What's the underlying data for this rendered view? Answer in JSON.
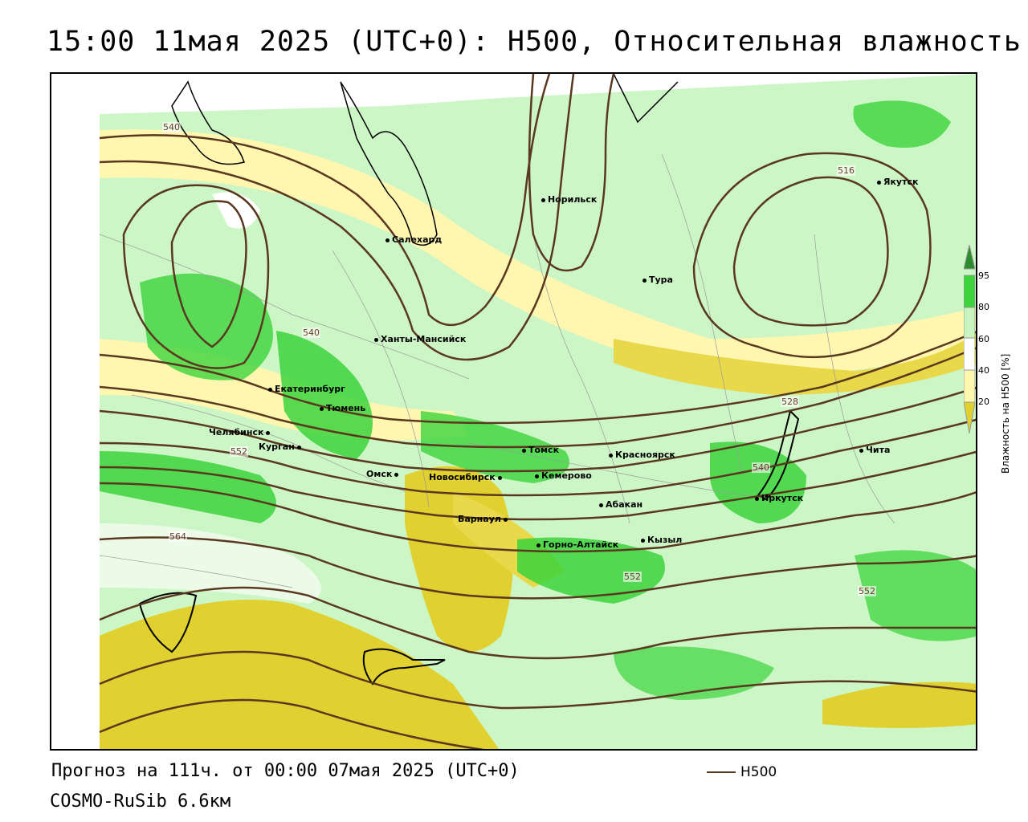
{
  "title": "15:00 11мая 2025 (UTC+0): H500, Относительная влажность",
  "footer": {
    "forecast": "Прогноз на 111ч. от 00:00 07мая 2025 (UTC+0)",
    "model": "COSMO-RuSib 6.6км",
    "line_legend": "H500"
  },
  "legend": {
    "title": "Влажность на H500 [%]",
    "ticks": [
      "95",
      "80",
      "60",
      "40",
      "20"
    ],
    "colors": {
      "95": "#2e8b2e",
      "80": "#3cd43c",
      "60": "#c8f5c0",
      "mid": "#ffffff",
      "40": "#fff6b0",
      "20": "#e0d030"
    }
  },
  "isolines": {
    "color": "#5a3820",
    "labels": [
      "540",
      "516",
      "540",
      "528",
      "540",
      "552",
      "564",
      "552",
      "552"
    ]
  },
  "cities": [
    {
      "name": "Норильск"
    },
    {
      "name": "Якутск"
    },
    {
      "name": "Салехард"
    },
    {
      "name": "Тура"
    },
    {
      "name": "Ханты-Мансийск"
    },
    {
      "name": "Екатеринбург"
    },
    {
      "name": "Тюмень"
    },
    {
      "name": "Челябинск"
    },
    {
      "name": "Курган"
    },
    {
      "name": "Омск"
    },
    {
      "name": "Новосибирск"
    },
    {
      "name": "Томск"
    },
    {
      "name": "Кемерово"
    },
    {
      "name": "Красноярск"
    },
    {
      "name": "Барнаул"
    },
    {
      "name": "Абакан"
    },
    {
      "name": "Горно-Алтайск"
    },
    {
      "name": "Кызыл"
    },
    {
      "name": "Иркутск"
    },
    {
      "name": "Чита"
    }
  ]
}
